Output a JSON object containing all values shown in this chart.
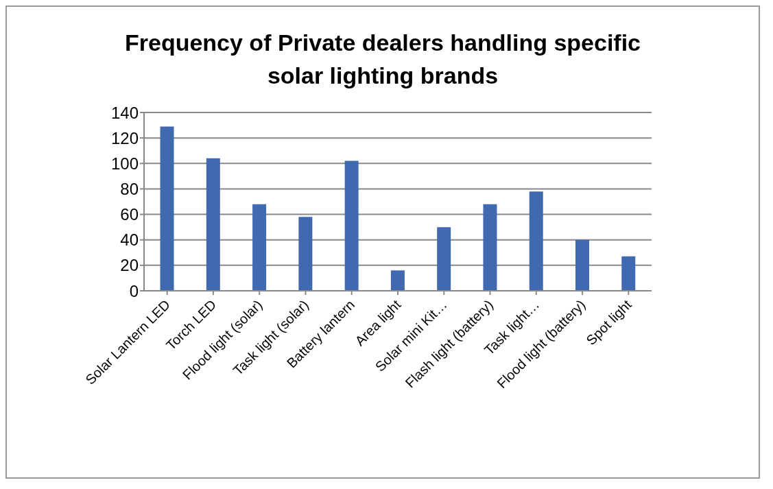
{
  "chart_data": {
    "type": "bar",
    "title": "Frequency of Private dealers handling specific solar lighting brands",
    "categories": [
      "Solar Lantern LED",
      "Torch LED",
      "Flood light (solar)",
      "Task light (solar)",
      "Battery lantern",
      "Area light",
      "Solar mini Kit…",
      "Flash light (battery)",
      "Task light…",
      "Flood light (battery)",
      "Spot light"
    ],
    "values": [
      129,
      104,
      68,
      58,
      102,
      16,
      50,
      68,
      78,
      40,
      27
    ],
    "color": "#4169b0",
    "ylim": [
      0,
      140
    ],
    "yticks": [
      0,
      20,
      40,
      60,
      80,
      100,
      120,
      140
    ],
    "grid": "y"
  }
}
